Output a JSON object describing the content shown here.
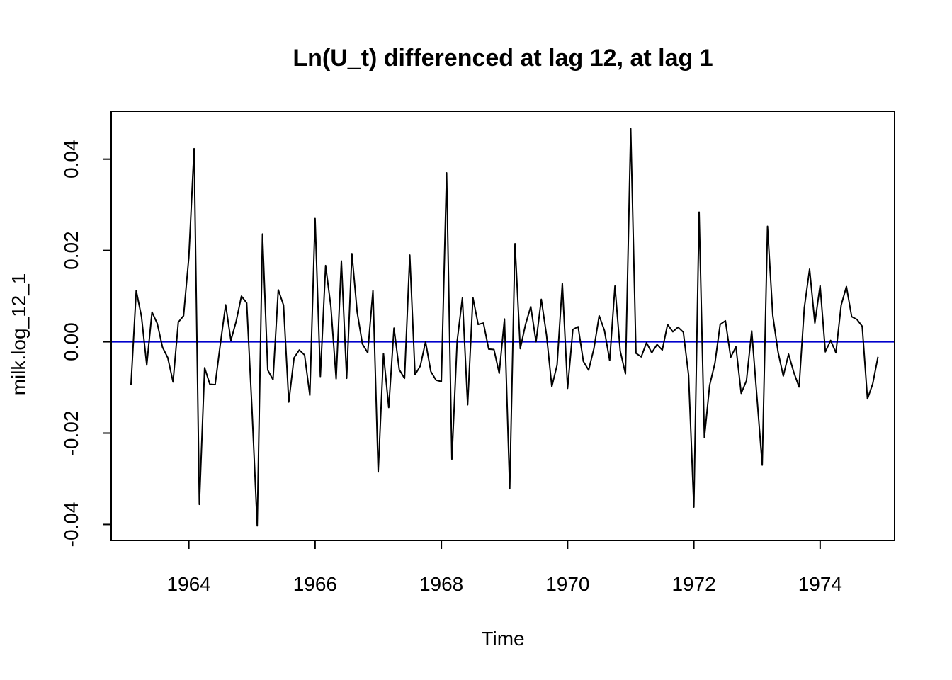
{
  "chart_data": {
    "type": "line",
    "title": "Ln(U_t) differenced at lag 12, at lag 1",
    "xlabel": "Time",
    "ylabel": "milk.log_12_1",
    "xlim": [
      1962.77,
      1975.18
    ],
    "ylim": [
      -0.0435,
      0.0505
    ],
    "x_ticks": [
      1964,
      1966,
      1968,
      1970,
      1972,
      1974
    ],
    "x_tick_labels": [
      "1964",
      "1966",
      "1968",
      "1970",
      "1972",
      "1974"
    ],
    "y_ticks": [
      -0.04,
      -0.02,
      0.0,
      0.02,
      0.04
    ],
    "y_tick_labels": [
      "-0.04",
      "-0.02",
      "0.00",
      "0.02",
      "0.04"
    ],
    "reference_line": {
      "y": 0,
      "color": "#0000cc"
    },
    "series": [
      {
        "color": "#000000",
        "x_start": 1963.0833,
        "x_step": 0.0833333,
        "values": [
          -0.0095,
          0.0112,
          0.0055,
          -0.0051,
          0.0065,
          0.004,
          -0.0012,
          -0.0035,
          -0.0088,
          0.0043,
          0.0057,
          0.0185,
          0.0423,
          -0.0356,
          -0.0057,
          -0.0093,
          -0.0094,
          -0.0004,
          0.0081,
          0.0003,
          0.0045,
          0.01,
          0.0085,
          -0.0146,
          -0.0403,
          0.0236,
          -0.0062,
          -0.0083,
          0.0114,
          0.008,
          -0.0132,
          -0.0035,
          -0.0018,
          -0.0029,
          -0.0117,
          0.027,
          -0.0076,
          0.0167,
          0.0077,
          -0.0081,
          0.0177,
          -0.008,
          0.0193,
          0.0065,
          -0.0005,
          -0.0024,
          0.0112,
          -0.0285,
          -0.0026,
          -0.0144,
          0.003,
          -0.0061,
          -0.008,
          0.019,
          -0.0072,
          -0.0053,
          0.0,
          -0.0065,
          -0.0084,
          -0.0087,
          0.037,
          -0.0257,
          0.0001,
          0.0096,
          -0.0138,
          0.0097,
          0.0038,
          0.0041,
          -0.0016,
          -0.0017,
          -0.0069,
          0.005,
          -0.0322,
          0.0215,
          -0.0015,
          0.0038,
          0.0077,
          0.0,
          0.0093,
          0.0014,
          -0.0098,
          -0.0051,
          0.0128,
          -0.0102,
          0.0027,
          0.0033,
          -0.0043,
          -0.0062,
          -0.0015,
          0.0057,
          0.0025,
          -0.0041,
          0.0122,
          -0.002,
          -0.007,
          0.0467,
          -0.0025,
          -0.0033,
          -0.0002,
          -0.0024,
          -0.0006,
          -0.0018,
          0.0038,
          0.0022,
          0.0032,
          0.0021,
          -0.0073,
          -0.0362,
          0.0284,
          -0.021,
          -0.0095,
          -0.0047,
          0.0038,
          0.0046,
          -0.0034,
          -0.0011,
          -0.0113,
          -0.0085,
          0.0024,
          -0.0122,
          -0.027,
          0.0253,
          0.0058,
          -0.0022,
          -0.0075,
          -0.0027,
          -0.0067,
          -0.0099,
          0.0075,
          0.0159,
          0.0041,
          0.0123,
          -0.0022,
          0.0003,
          -0.0024,
          0.008,
          0.0121,
          0.0055,
          0.0049,
          0.0034,
          -0.0125,
          -0.0092,
          -0.0033
        ]
      }
    ]
  }
}
